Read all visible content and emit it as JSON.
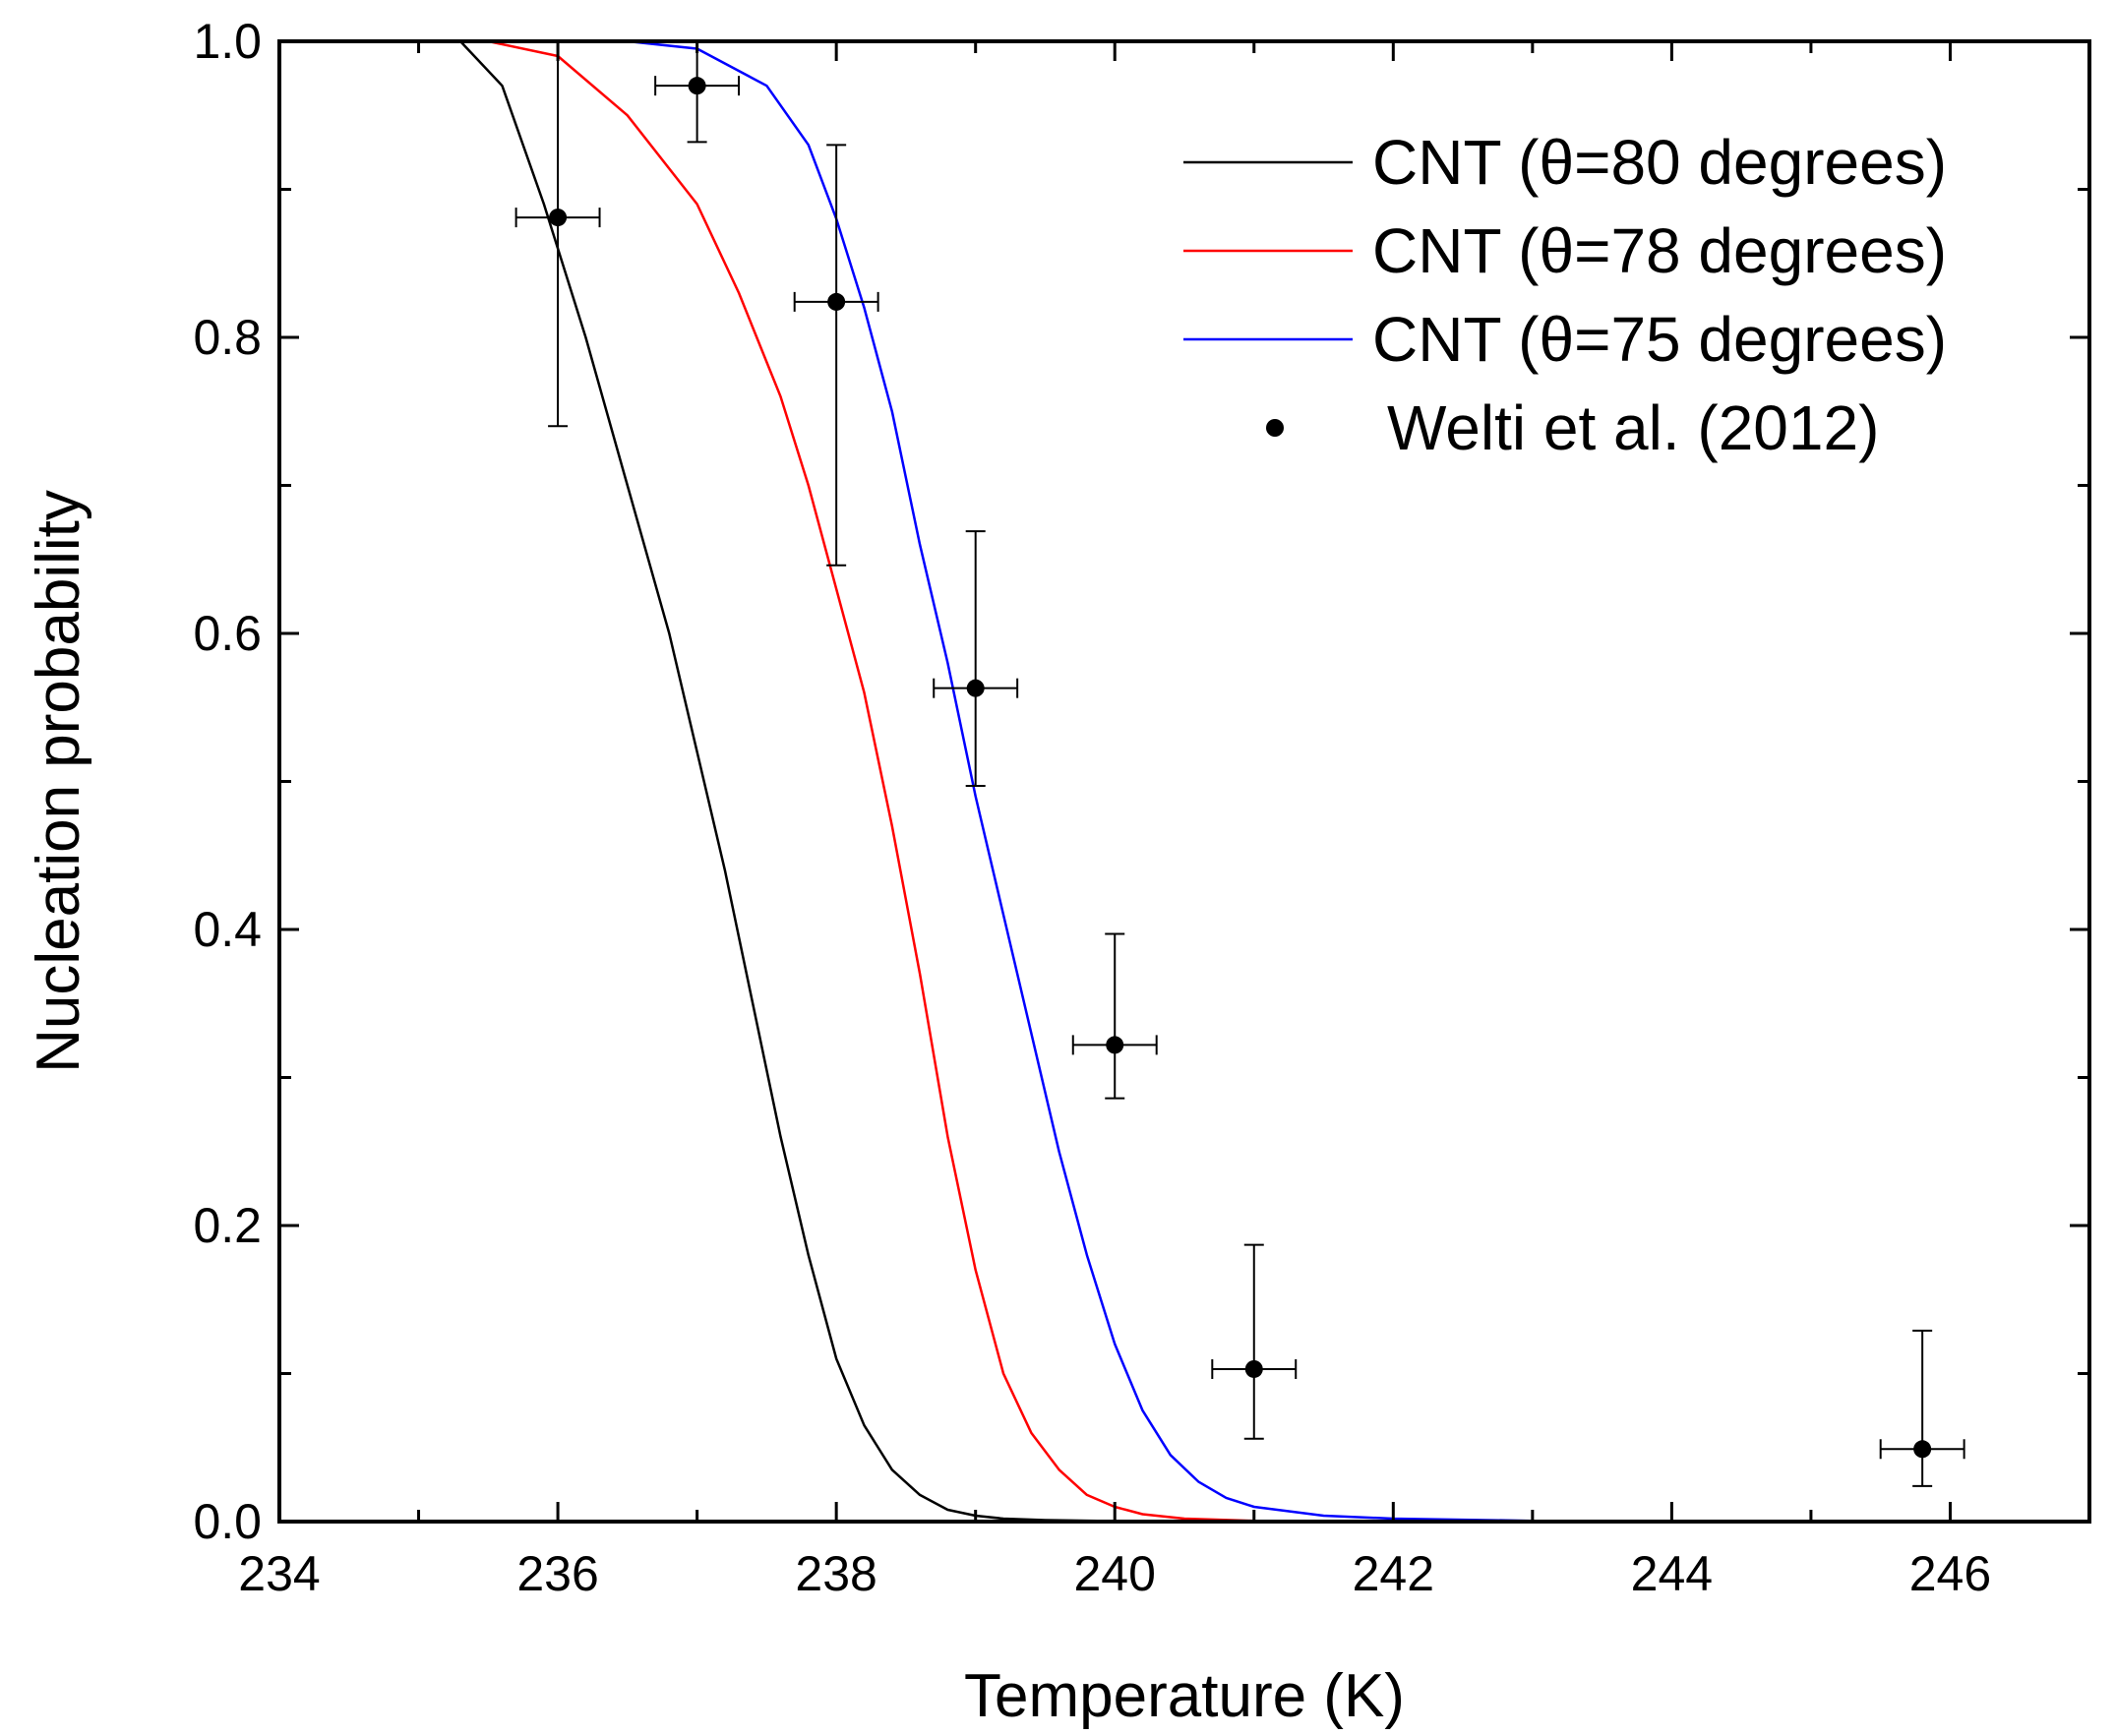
{
  "chart_data": {
    "type": "line",
    "title": "",
    "xlabel": "Temperature (K)",
    "ylabel": "Nucleation probability",
    "xlim": [
      234,
      247
    ],
    "ylim": [
      0.0,
      1.0
    ],
    "x_ticks": [
      234,
      236,
      238,
      240,
      242,
      244,
      246
    ],
    "x_tick_labels": [
      "234",
      "236",
      "238",
      "240",
      "242",
      "244",
      "246"
    ],
    "y_ticks": [
      0.0,
      0.2,
      0.4,
      0.6,
      0.8,
      1.0
    ],
    "y_tick_labels": [
      "0.0",
      "0.2",
      "0.4",
      "0.6",
      "0.8",
      "1.0"
    ],
    "grid": false,
    "legend_position": "top-right",
    "series": [
      {
        "name": "CNT (θ=80 degrees)",
        "color": "#000000",
        "kind": "line",
        "x": [
          235.3,
          235.6,
          235.9,
          236.2,
          236.5,
          236.8,
          237.0,
          237.2,
          237.4,
          237.6,
          237.8,
          238.0,
          238.2,
          238.4,
          238.6,
          238.8,
          239.0,
          239.2,
          239.5,
          240.0,
          241.0,
          243.0,
          247.0
        ],
        "y": [
          1.0,
          0.97,
          0.89,
          0.8,
          0.7,
          0.6,
          0.52,
          0.44,
          0.35,
          0.26,
          0.18,
          0.11,
          0.065,
          0.035,
          0.018,
          0.008,
          0.004,
          0.002,
          0.001,
          0.0003,
          0.0,
          0.0,
          0.0
        ]
      },
      {
        "name": "CNT (θ=78 degrees)",
        "color": "#ff0000",
        "kind": "line",
        "x": [
          235.5,
          236.0,
          236.5,
          237.0,
          237.3,
          237.6,
          237.8,
          238.0,
          238.2,
          238.4,
          238.6,
          238.8,
          239.0,
          239.2,
          239.4,
          239.6,
          239.8,
          240.0,
          240.2,
          240.5,
          241.0,
          242.0,
          247.0
        ],
        "y": [
          1.0,
          0.99,
          0.95,
          0.89,
          0.83,
          0.76,
          0.7,
          0.63,
          0.56,
          0.47,
          0.37,
          0.26,
          0.17,
          0.1,
          0.06,
          0.035,
          0.018,
          0.01,
          0.005,
          0.002,
          0.0005,
          0.0,
          0.0
        ]
      },
      {
        "name": "CNT (θ=75 degrees)",
        "color": "#0000ff",
        "kind": "line",
        "x": [
          236.5,
          237.0,
          237.5,
          237.8,
          238.0,
          238.2,
          238.4,
          238.6,
          238.8,
          239.0,
          239.2,
          239.4,
          239.6,
          239.8,
          240.0,
          240.2,
          240.4,
          240.6,
          240.8,
          241.0,
          241.5,
          242.0,
          243.0,
          247.0
        ],
        "y": [
          1.0,
          0.995,
          0.97,
          0.93,
          0.88,
          0.82,
          0.75,
          0.66,
          0.58,
          0.49,
          0.41,
          0.33,
          0.25,
          0.18,
          0.12,
          0.075,
          0.045,
          0.027,
          0.016,
          0.01,
          0.004,
          0.002,
          0.0005,
          0.0
        ]
      },
      {
        "name": "Welti et al. (2012)",
        "color": "#000000",
        "kind": "scatter",
        "x": [
          236.0,
          237.0,
          238.0,
          239.0,
          240.0,
          241.0,
          245.8
        ],
        "y": [
          0.881,
          0.97,
          0.824,
          0.563,
          0.322,
          0.103,
          0.049
        ],
        "x_err": [
          0.3,
          0.3,
          0.3,
          0.3,
          0.3,
          0.3,
          0.3
        ],
        "y_err_low": [
          0.141,
          0.038,
          0.178,
          0.066,
          0.036,
          0.047,
          0.025
        ],
        "y_err_high": [
          0.119,
          0.03,
          0.106,
          0.106,
          0.075,
          0.084,
          0.08
        ]
      }
    ]
  }
}
